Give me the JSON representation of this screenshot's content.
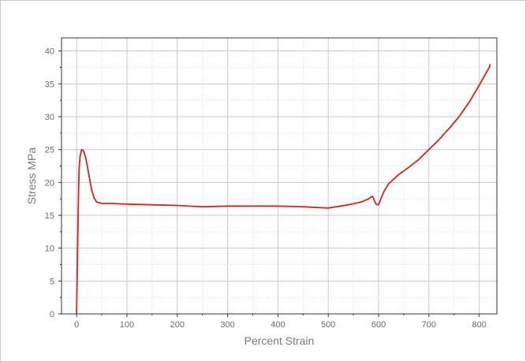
{
  "chart_data": {
    "type": "line",
    "title": "",
    "xlabel": "Percent Strain",
    "ylabel": "Stress MPa",
    "xlim": [
      -30,
      835
    ],
    "ylim": [
      0,
      42
    ],
    "xticks": [
      0,
      100,
      200,
      300,
      400,
      500,
      600,
      700,
      800
    ],
    "yticks": [
      0,
      5,
      10,
      15,
      20,
      25,
      30,
      35,
      40
    ],
    "grid": true,
    "legend": "none",
    "series": [
      {
        "color": "#e02020",
        "points": [
          [
            0,
            0
          ],
          [
            1,
            5
          ],
          [
            2,
            10
          ],
          [
            3,
            15
          ],
          [
            4,
            19
          ],
          [
            5,
            22
          ],
          [
            7,
            24
          ],
          [
            10,
            25
          ],
          [
            14,
            24.8
          ],
          [
            18,
            23.8
          ],
          [
            22,
            22.2
          ],
          [
            26,
            20.5
          ],
          [
            30,
            18.8
          ],
          [
            35,
            17.6
          ],
          [
            40,
            17.0
          ],
          [
            50,
            16.8
          ],
          [
            70,
            16.8
          ],
          [
            100,
            16.7
          ],
          [
            150,
            16.6
          ],
          [
            200,
            16.5
          ],
          [
            250,
            16.3
          ],
          [
            300,
            16.4
          ],
          [
            350,
            16.4
          ],
          [
            400,
            16.4
          ],
          [
            450,
            16.3
          ],
          [
            500,
            16.1
          ],
          [
            540,
            16.6
          ],
          [
            565,
            17.0
          ],
          [
            580,
            17.5
          ],
          [
            588,
            17.9
          ],
          [
            595,
            16.7
          ],
          [
            600,
            16.6
          ],
          [
            610,
            18.5
          ],
          [
            620,
            19.8
          ],
          [
            640,
            21.2
          ],
          [
            660,
            22.3
          ],
          [
            680,
            23.5
          ],
          [
            700,
            25.0
          ],
          [
            720,
            26.5
          ],
          [
            740,
            28.2
          ],
          [
            760,
            30.0
          ],
          [
            780,
            32.2
          ],
          [
            800,
            34.8
          ],
          [
            820,
            37.5
          ],
          [
            822,
            38.0
          ]
        ]
      }
    ]
  }
}
